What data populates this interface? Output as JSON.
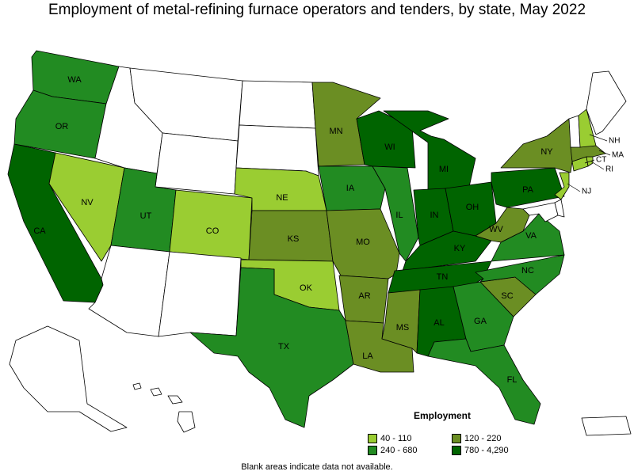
{
  "title": "Employment of metal-refining furnace operators and tenders, by state, May 2022",
  "legend": {
    "title": "Employment",
    "bins": [
      {
        "label": "40 - 110",
        "color": "#9acd32"
      },
      {
        "label": "120 - 220",
        "color": "#6b8e23"
      },
      {
        "label": "240 - 680",
        "color": "#228b22"
      },
      {
        "label": "780 - 4,290",
        "color": "#006400"
      }
    ]
  },
  "footnote": "Blank areas indicate data not available.",
  "colors": {
    "none": "#ffffff",
    "low": "#9acd32",
    "midlow": "#6b8e23",
    "midhigh": "#228b22",
    "high": "#006400"
  },
  "states": [
    {
      "abbr": "WA",
      "bin": "midhigh"
    },
    {
      "abbr": "OR",
      "bin": "midhigh"
    },
    {
      "abbr": "CA",
      "bin": "high"
    },
    {
      "abbr": "NV",
      "bin": "low"
    },
    {
      "abbr": "UT",
      "bin": "midhigh"
    },
    {
      "abbr": "CO",
      "bin": "low"
    },
    {
      "abbr": "NE",
      "bin": "low"
    },
    {
      "abbr": "KS",
      "bin": "midlow"
    },
    {
      "abbr": "OK",
      "bin": "low"
    },
    {
      "abbr": "TX",
      "bin": "midhigh"
    },
    {
      "abbr": "MN",
      "bin": "midlow"
    },
    {
      "abbr": "IA",
      "bin": "midhigh"
    },
    {
      "abbr": "MO",
      "bin": "midlow"
    },
    {
      "abbr": "AR",
      "bin": "midlow"
    },
    {
      "abbr": "LA",
      "bin": "midlow"
    },
    {
      "abbr": "WI",
      "bin": "high"
    },
    {
      "abbr": "IL",
      "bin": "midhigh"
    },
    {
      "abbr": "MI",
      "bin": "high"
    },
    {
      "abbr": "IN",
      "bin": "high"
    },
    {
      "abbr": "OH",
      "bin": "high"
    },
    {
      "abbr": "KY",
      "bin": "high"
    },
    {
      "abbr": "TN",
      "bin": "high"
    },
    {
      "abbr": "MS",
      "bin": "midlow"
    },
    {
      "abbr": "AL",
      "bin": "high"
    },
    {
      "abbr": "GA",
      "bin": "midhigh"
    },
    {
      "abbr": "FL",
      "bin": "midhigh"
    },
    {
      "abbr": "SC",
      "bin": "midlow"
    },
    {
      "abbr": "NC",
      "bin": "midhigh"
    },
    {
      "abbr": "VA",
      "bin": "midhigh"
    },
    {
      "abbr": "WV",
      "bin": "midlow"
    },
    {
      "abbr": "PA",
      "bin": "high"
    },
    {
      "abbr": "NY",
      "bin": "midlow"
    },
    {
      "abbr": "NJ",
      "bin": "low"
    },
    {
      "abbr": "CT",
      "bin": "low"
    },
    {
      "abbr": "RI",
      "bin": "low"
    },
    {
      "abbr": "MA",
      "bin": "midlow"
    },
    {
      "abbr": "NH",
      "bin": "low"
    },
    {
      "abbr": "VT",
      "bin": "none"
    },
    {
      "abbr": "ME",
      "bin": "none"
    },
    {
      "abbr": "MD",
      "bin": "none"
    },
    {
      "abbr": "DE",
      "bin": "none"
    },
    {
      "abbr": "ID",
      "bin": "none"
    },
    {
      "abbr": "MT",
      "bin": "none"
    },
    {
      "abbr": "WY",
      "bin": "none"
    },
    {
      "abbr": "ND",
      "bin": "none"
    },
    {
      "abbr": "SD",
      "bin": "none"
    },
    {
      "abbr": "AZ",
      "bin": "none"
    },
    {
      "abbr": "NM",
      "bin": "none"
    },
    {
      "abbr": "AK",
      "bin": "none"
    },
    {
      "abbr": "HI",
      "bin": "none"
    },
    {
      "abbr": "PR",
      "bin": "none"
    }
  ]
}
